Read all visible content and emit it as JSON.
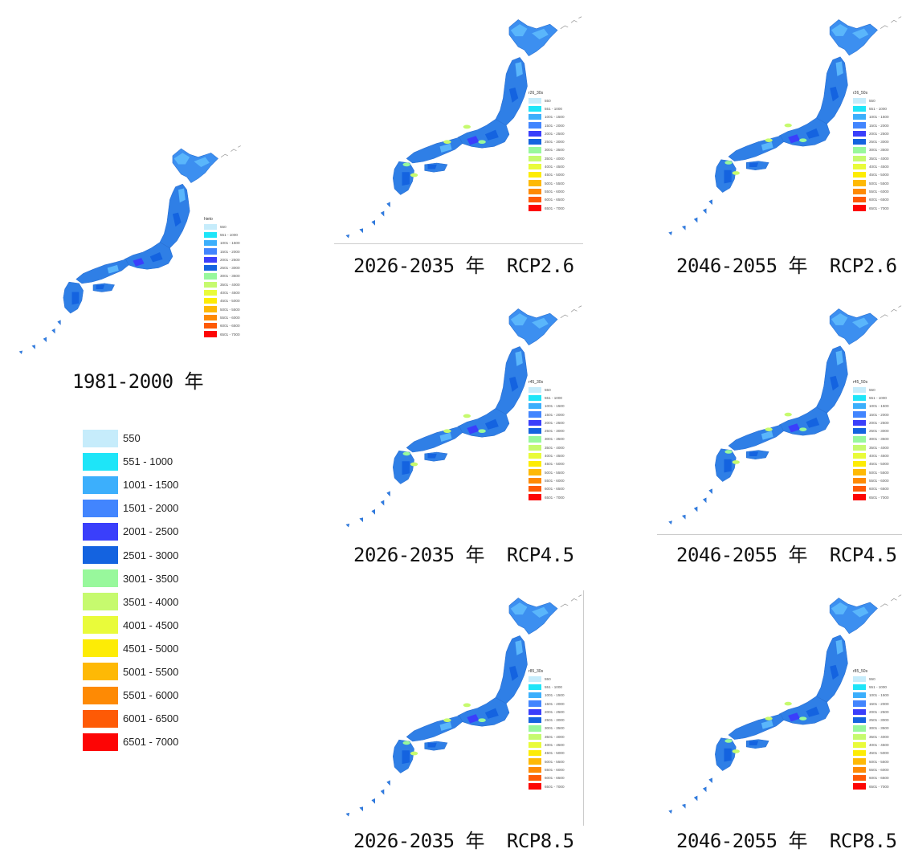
{
  "legend": {
    "items": [
      {
        "label": "550",
        "color": "#c6ecfb"
      },
      {
        "label": "551 - 1000",
        "color": "#1ee5f8"
      },
      {
        "label": "1001 - 1500",
        "color": "#3caffc"
      },
      {
        "label": "1501 - 2000",
        "color": "#4285fe"
      },
      {
        "label": "2001 - 2500",
        "color": "#3a3ffb"
      },
      {
        "label": "2501 - 3000",
        "color": "#1463e0"
      },
      {
        "label": "3001 - 3500",
        "color": "#98f89c"
      },
      {
        "label": "3501 - 4000",
        "color": "#c6fa6e"
      },
      {
        "label": "4001 - 4500",
        "color": "#e9fb3a"
      },
      {
        "label": "4501 - 5000",
        "color": "#fdec05"
      },
      {
        "label": "5001 - 5500",
        "color": "#feb905"
      },
      {
        "label": "5501 - 6000",
        "color": "#fe8a04"
      },
      {
        "label": "6001 - 6500",
        "color": "#fe5a05"
      },
      {
        "label": "6501 - 7000",
        "color": "#fd0505"
      }
    ]
  },
  "maps": [
    {
      "legend_title": "hieto",
      "caption": "1981-2000 年"
    },
    {
      "legend_title": "r26_30s",
      "caption": "2026-2035 年  RCP2.6"
    },
    {
      "legend_title": "r26_50s",
      "caption": "2046-2055 年  RCP2.6"
    },
    {
      "legend_title": "r45_30s",
      "caption": "2026-2035 年  RCP4.5"
    },
    {
      "legend_title": "r45_50s",
      "caption": "2046-2055 年  RCP4.5"
    },
    {
      "legend_title": "r85_30s",
      "caption": "2026-2035 年  RCP8.5"
    },
    {
      "legend_title": "r85_50s",
      "caption": "2046-2055 年  RCP8.5"
    }
  ]
}
